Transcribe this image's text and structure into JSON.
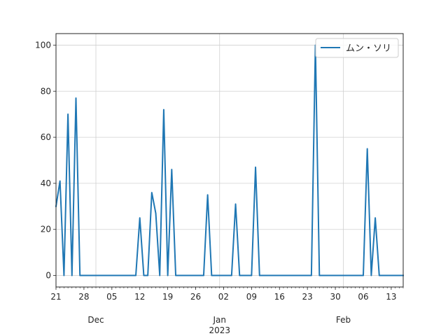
{
  "chart_data": {
    "type": "line",
    "title": "",
    "xlabel": "",
    "ylabel": "",
    "x_range": [
      "2022-11-21",
      "2023-02-16"
    ],
    "ylim": [
      -5,
      105
    ],
    "grid": true,
    "legend_position": "top-right",
    "x_major_ticks": [
      {
        "date": "2022-11-21",
        "label": "21"
      },
      {
        "date": "2022-11-28",
        "label": "28"
      },
      {
        "date": "2022-12-05",
        "label": "05"
      },
      {
        "date": "2022-12-12",
        "label": "12"
      },
      {
        "date": "2022-12-19",
        "label": "19"
      },
      {
        "date": "2022-12-26",
        "label": "26"
      },
      {
        "date": "2023-01-02",
        "label": "02"
      },
      {
        "date": "2023-01-09",
        "label": "09"
      },
      {
        "date": "2023-01-16",
        "label": "16"
      },
      {
        "date": "2023-01-23",
        "label": "23"
      },
      {
        "date": "2023-01-30",
        "label": "30"
      },
      {
        "date": "2023-02-06",
        "label": "06"
      },
      {
        "date": "2023-02-13",
        "label": "13"
      }
    ],
    "x_month_labels": [
      {
        "date": "2022-12-01",
        "label": "Dec"
      },
      {
        "date": "2023-01-01",
        "label": "Jan"
      },
      {
        "date": "2023-02-01",
        "label": "Feb"
      }
    ],
    "x_year_label": {
      "date": "2023-01-01",
      "label": "2023"
    },
    "y_ticks": [
      0,
      20,
      40,
      60,
      80,
      100
    ],
    "series": [
      {
        "name": "ムン・ソリ",
        "color": "#1f77b4",
        "points": [
          [
            "2022-11-21",
            30
          ],
          [
            "2022-11-22",
            41
          ],
          [
            "2022-11-23",
            0
          ],
          [
            "2022-11-24",
            70
          ],
          [
            "2022-11-25",
            0
          ],
          [
            "2022-11-26",
            77
          ],
          [
            "2022-11-27",
            0
          ],
          [
            "2022-11-28",
            0
          ],
          [
            "2022-11-29",
            0
          ],
          [
            "2022-11-30",
            0
          ],
          [
            "2022-12-01",
            0
          ],
          [
            "2022-12-02",
            0
          ],
          [
            "2022-12-03",
            0
          ],
          [
            "2022-12-04",
            0
          ],
          [
            "2022-12-05",
            0
          ],
          [
            "2022-12-06",
            0
          ],
          [
            "2022-12-07",
            0
          ],
          [
            "2022-12-08",
            0
          ],
          [
            "2022-12-09",
            0
          ],
          [
            "2022-12-10",
            0
          ],
          [
            "2022-12-11",
            0
          ],
          [
            "2022-12-12",
            25
          ],
          [
            "2022-12-13",
            0
          ],
          [
            "2022-12-14",
            0
          ],
          [
            "2022-12-15",
            36
          ],
          [
            "2022-12-16",
            27
          ],
          [
            "2022-12-17",
            0
          ],
          [
            "2022-12-18",
            72
          ],
          [
            "2022-12-19",
            0
          ],
          [
            "2022-12-20",
            46
          ],
          [
            "2022-12-21",
            0
          ],
          [
            "2022-12-22",
            0
          ],
          [
            "2022-12-23",
            0
          ],
          [
            "2022-12-24",
            0
          ],
          [
            "2022-12-25",
            0
          ],
          [
            "2022-12-26",
            0
          ],
          [
            "2022-12-27",
            0
          ],
          [
            "2022-12-28",
            0
          ],
          [
            "2022-12-29",
            35
          ],
          [
            "2022-12-30",
            0
          ],
          [
            "2022-12-31",
            0
          ],
          [
            "2023-01-01",
            0
          ],
          [
            "2023-01-02",
            0
          ],
          [
            "2023-01-03",
            0
          ],
          [
            "2023-01-04",
            0
          ],
          [
            "2023-01-05",
            31
          ],
          [
            "2023-01-06",
            0
          ],
          [
            "2023-01-07",
            0
          ],
          [
            "2023-01-08",
            0
          ],
          [
            "2023-01-09",
            0
          ],
          [
            "2023-01-10",
            47
          ],
          [
            "2023-01-11",
            0
          ],
          [
            "2023-01-12",
            0
          ],
          [
            "2023-01-13",
            0
          ],
          [
            "2023-01-14",
            0
          ],
          [
            "2023-01-15",
            0
          ],
          [
            "2023-01-16",
            0
          ],
          [
            "2023-01-17",
            0
          ],
          [
            "2023-01-18",
            0
          ],
          [
            "2023-01-19",
            0
          ],
          [
            "2023-01-20",
            0
          ],
          [
            "2023-01-21",
            0
          ],
          [
            "2023-01-22",
            0
          ],
          [
            "2023-01-23",
            0
          ],
          [
            "2023-01-24",
            0
          ],
          [
            "2023-01-25",
            100
          ],
          [
            "2023-01-26",
            0
          ],
          [
            "2023-01-27",
            0
          ],
          [
            "2023-01-28",
            0
          ],
          [
            "2023-01-29",
            0
          ],
          [
            "2023-01-30",
            0
          ],
          [
            "2023-01-31",
            0
          ],
          [
            "2023-02-01",
            0
          ],
          [
            "2023-02-02",
            0
          ],
          [
            "2023-02-03",
            0
          ],
          [
            "2023-02-04",
            0
          ],
          [
            "2023-02-05",
            0
          ],
          [
            "2023-02-06",
            0
          ],
          [
            "2023-02-07",
            55
          ],
          [
            "2023-02-08",
            0
          ],
          [
            "2023-02-09",
            25
          ],
          [
            "2023-02-10",
            0
          ],
          [
            "2023-02-11",
            0
          ],
          [
            "2023-02-12",
            0
          ],
          [
            "2023-02-13",
            0
          ],
          [
            "2023-02-14",
            0
          ],
          [
            "2023-02-15",
            0
          ],
          [
            "2023-02-16",
            0
          ]
        ]
      }
    ]
  }
}
